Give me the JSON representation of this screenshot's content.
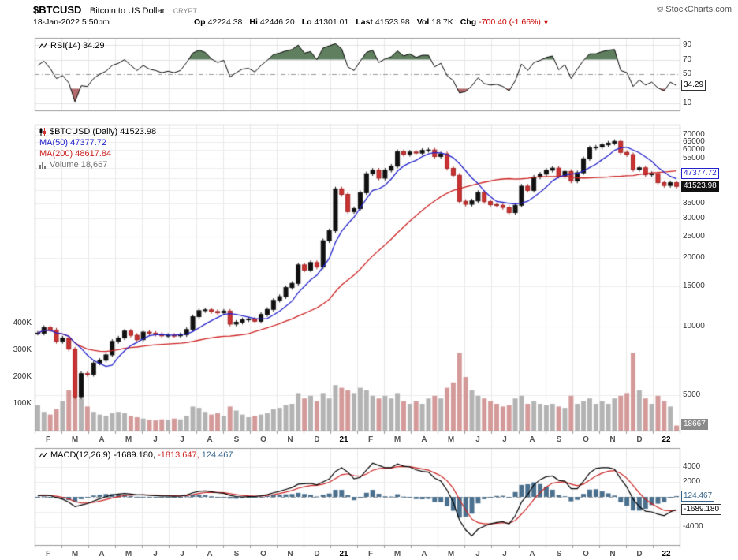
{
  "header": {
    "symbol": "$BTCUSD",
    "name": "Bitcoin to US Dollar",
    "exchange": "CRYPT",
    "copyright": "© StockCharts.com",
    "datetime": "18-Jan-2022 5:50pm",
    "quote": [
      {
        "label": "Op",
        "value": "42224.38"
      },
      {
        "label": "Hi",
        "value": "42446.20"
      },
      {
        "label": "Lo",
        "value": "41301.01"
      },
      {
        "label": "Last",
        "value": "41523.98"
      },
      {
        "label": "Vol",
        "value": "18.7K"
      },
      {
        "label": "Chg",
        "value": "-700.40 (-1.66%)",
        "negative": true,
        "arrow": "▼"
      }
    ]
  },
  "rsi_panel": {
    "legend": "RSI(14) 34.29",
    "ticks": [
      {
        "t": "90",
        "v": 90
      },
      {
        "t": "70",
        "v": 70
      },
      {
        "t": "50",
        "v": 50
      },
      {
        "t": "30",
        "v": 30
      },
      {
        "t": "10",
        "v": 10
      }
    ],
    "last_box": "34.29"
  },
  "main_panel": {
    "legend_symbol": "$BTCUSD (Daily) 41523.98",
    "legend_ma50": "MA(50) 47377.72",
    "legend_ma200": "MA(200) 48617.84",
    "legend_volume": "Volume 18,667",
    "price_ticks": [
      {
        "t": "70000",
        "v": 70000
      },
      {
        "t": "65000",
        "v": 65000
      },
      {
        "t": "60000",
        "v": 60000
      },
      {
        "t": "55000",
        "v": 55000
      },
      {
        "t": "35000",
        "v": 35000
      },
      {
        "t": "30000",
        "v": 30000
      },
      {
        "t": "25000",
        "v": 25000
      },
      {
        "t": "20000",
        "v": 20000
      },
      {
        "t": "15000",
        "v": 15000
      },
      {
        "t": "10000",
        "v": 10000
      },
      {
        "t": "5000",
        "v": 5000
      }
    ],
    "ma50_box": "47377.72",
    "last_box": "41523.98",
    "volume_box": "18667",
    "volume_ticks": [
      {
        "t": "400K",
        "v": 400
      },
      {
        "t": "300K",
        "v": 300
      },
      {
        "t": "200K",
        "v": 200
      },
      {
        "t": "100K",
        "v": 100
      }
    ]
  },
  "macd_panel": {
    "legend": "MACD(12,26,9)",
    "values": [
      {
        "text": "-1689.180,",
        "color": "#000000"
      },
      {
        "text": "-1813.647,",
        "color": "#cc2222"
      },
      {
        "text": "124.467",
        "color": "#36648b"
      }
    ],
    "ticks": [
      {
        "t": "4000",
        "v": 4000
      },
      {
        "t": "2000",
        "v": 2000
      },
      {
        "t": "-4000",
        "v": -4000
      }
    ],
    "hist_box": "124.467",
    "macd_box": "-1689.180"
  },
  "x_axis": {
    "labels": [
      {
        "t": "F"
      },
      {
        "t": "M"
      },
      {
        "t": "A"
      },
      {
        "t": "M"
      },
      {
        "t": "J"
      },
      {
        "t": "J"
      },
      {
        "t": "A"
      },
      {
        "t": "S"
      },
      {
        "t": "O"
      },
      {
        "t": "N"
      },
      {
        "t": "D"
      },
      {
        "t": "21",
        "bold": true
      },
      {
        "t": "F"
      },
      {
        "t": "M"
      },
      {
        "t": "A"
      },
      {
        "t": "M"
      },
      {
        "t": "J"
      },
      {
        "t": "J"
      },
      {
        "t": "A"
      },
      {
        "t": "S"
      },
      {
        "t": "O"
      },
      {
        "t": "N"
      },
      {
        "t": "D"
      },
      {
        "t": "22",
        "bold": true
      }
    ]
  },
  "colors": {
    "up": "#111111",
    "down": "#cc3333",
    "down_border": "#a32222",
    "ma50": "#2222cc",
    "ma200": "#cc2222",
    "volume_up": "#b3b3b3",
    "volume_down": "#d49a9a",
    "macd_hist": "#4a708e",
    "macd_line": "#000000",
    "signal_line": "#cc2222",
    "negative": "#cc0000",
    "rsi_fill_high": "#5f7f5f",
    "rsi_fill_low": "#b36b6b",
    "grid": "#e8e8e8",
    "panel_border": "#999999"
  },
  "chart_data": [
    {
      "type": "line",
      "title": "RSI(14)",
      "ylim": [
        0,
        100
      ],
      "tick_values": [
        90,
        70,
        50,
        30,
        10
      ],
      "overbought": 70,
      "oversold": 30,
      "midline": 50,
      "last": 34.29,
      "x_note": "weekly samples, Feb 2020 - Jan 2022",
      "values": [
        62,
        68,
        58,
        44,
        48,
        38,
        12,
        34,
        33,
        44,
        50,
        54,
        62,
        65,
        70,
        62,
        55,
        62,
        57,
        55,
        52,
        54,
        52,
        55,
        66,
        79,
        83,
        80,
        71,
        66,
        69,
        46,
        52,
        57,
        58,
        53,
        62,
        69,
        77,
        79,
        82,
        84,
        90,
        79,
        81,
        70,
        86,
        89,
        92,
        85,
        60,
        55,
        68,
        80,
        83,
        66,
        71,
        74,
        82,
        75,
        78,
        73,
        76,
        76,
        60,
        65,
        48,
        41,
        24,
        26,
        34,
        45,
        37,
        35,
        36,
        33,
        27,
        41,
        64,
        55,
        66,
        69,
        73,
        75,
        56,
        63,
        44,
        57,
        69,
        78,
        78,
        81,
        83,
        84,
        55,
        52,
        33,
        42,
        35,
        39,
        31,
        27,
        39,
        34.29
      ]
    },
    {
      "type": "candlestick",
      "title": "$BTCUSD (Daily)",
      "yscale": "log",
      "ylim": [
        3470,
        77700
      ],
      "open": 42224.38,
      "high": 42446.2,
      "low": 41301.01,
      "last": 41523.98,
      "change": -700.4,
      "change_pct": -1.66,
      "ma50_last": 47377.72,
      "ma200_last": 48617.84,
      "volume_last": 18667,
      "x_note": "weekly samples, Feb 2020 - Jan 2022",
      "close": [
        9350,
        9900,
        9650,
        8600,
        8900,
        7950,
        4900,
        6200,
        6150,
        6900,
        7100,
        7500,
        8600,
        8900,
        9550,
        9150,
        8750,
        9450,
        9350,
        9250,
        9100,
        9150,
        9100,
        9200,
        9700,
        11050,
        11750,
        11850,
        11650,
        11500,
        11700,
        10250,
        10450,
        10700,
        10800,
        10550,
        11300,
        11900,
        13050,
        13550,
        14850,
        15500,
        18700,
        17750,
        19150,
        18300,
        23900,
        26450,
        40500,
        38250,
        32100,
        33100,
        38900,
        47200,
        48900,
        45100,
        48900,
        50950,
        59000,
        57400,
        58800,
        58200,
        59800,
        60050,
        56200,
        57750,
        49850,
        46450,
        35650,
        34600,
        35800,
        39000,
        35550,
        34450,
        34250,
        33500,
        31800,
        34250,
        41600,
        39850,
        45600,
        47000,
        48900,
        49950,
        46000,
        48300,
        43800,
        47650,
        54950,
        61300,
        61850,
        63300,
        64400,
        65500,
        58600,
        57250,
        49250,
        50100,
        46700,
        47300,
        43100,
        41900,
        43100,
        41524
      ],
      "volume_k": [
        95,
        70,
        60,
        80,
        110,
        150,
        230,
        120,
        90,
        70,
        60,
        55,
        65,
        70,
        65,
        55,
        50,
        45,
        40,
        38,
        42,
        40,
        45,
        42,
        55,
        90,
        85,
        70,
        60,
        65,
        55,
        90,
        75,
        60,
        50,
        55,
        60,
        65,
        80,
        85,
        95,
        100,
        140,
        120,
        130,
        110,
        140,
        120,
        170,
        160,
        150,
        140,
        160,
        150,
        130,
        120,
        130,
        120,
        140,
        110,
        100,
        110,
        100,
        120,
        130,
        120,
        160,
        180,
        290,
        200,
        150,
        130,
        120,
        110,
        100,
        90,
        95,
        120,
        130,
        100,
        110,
        100,
        95,
        100,
        90,
        85,
        130,
        100,
        110,
        120,
        100,
        110,
        100,
        120,
        130,
        140,
        290,
        150,
        120,
        100,
        130,
        110,
        90,
        19
      ]
    },
    {
      "type": "macd",
      "title": "MACD(12,26,9)",
      "ylim": [
        -6400,
        6500
      ],
      "tick_values": [
        4000,
        2000,
        -4000
      ],
      "macd_last": -1689.18,
      "signal_last": -1813.647,
      "hist_last": 124.467,
      "x_note": "weekly samples, Feb 2020 - Jan 2022",
      "macd": [
        150,
        250,
        180,
        -100,
        -300,
        -700,
        -1300,
        -1100,
        -900,
        -550,
        -250,
        30,
        250,
        380,
        450,
        380,
        280,
        280,
        220,
        170,
        120,
        110,
        90,
        110,
        250,
        550,
        750,
        800,
        700,
        550,
        480,
        200,
        50,
        0,
        30,
        50,
        150,
        300,
        550,
        750,
        1000,
        1250,
        1700,
        1750,
        1800,
        1600,
        2000,
        2400,
        3400,
        3900,
        3300,
        2400,
        2600,
        3600,
        4500,
        4200,
        3900,
        3900,
        4400,
        4100,
        4000,
        3600,
        3400,
        3300,
        2500,
        2100,
        900,
        -700,
        -3100,
        -4400,
        -5200,
        -4300,
        -3900,
        -3600,
        -3400,
        -3300,
        -3600,
        -2500,
        -700,
        300,
        1600,
        2300,
        2700,
        2800,
        2200,
        2100,
        1100,
        1100,
        2100,
        3200,
        3800,
        3900,
        3900,
        3700,
        2400,
        1300,
        -300,
        -1300,
        -1900,
        -2000,
        -2300,
        -2500,
        -2000,
        -1689
      ]
    }
  ]
}
